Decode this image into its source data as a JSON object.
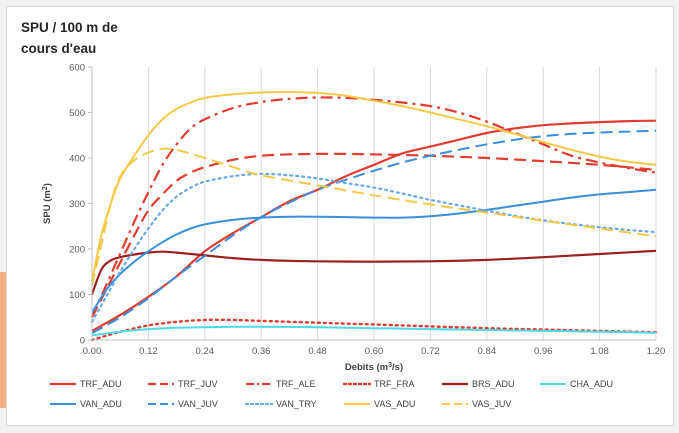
{
  "colors": {
    "accent": "#f4b183"
  },
  "chart_data": {
    "type": "line",
    "title_line1": "SPU / 100 m de",
    "title_line2": "cours d'eau",
    "xlabel_prefix": "Debits (m",
    "xlabel_sup": "3",
    "xlabel_suffix": "/s)",
    "ylabel_prefix": "SPU (m",
    "ylabel_sup": "2",
    "ylabel_suffix": ")",
    "xlim": [
      0,
      1.2
    ],
    "ylim": [
      0,
      600
    ],
    "x_ticks": [
      "0.00",
      "0.12",
      "0.24",
      "0.36",
      "0.48",
      "0.60",
      "0.72",
      "0.84",
      "0.96",
      "1.08",
      "1.20"
    ],
    "y_ticks": [
      "0",
      "100",
      "200",
      "300",
      "400",
      "500",
      "600"
    ],
    "grid": "vertical",
    "legend_position": "bottom",
    "series": [
      {
        "name": "TRF_ADU",
        "color": "#e03c31",
        "dash": "solid",
        "width": 2.2,
        "points": [
          [
            0,
            20
          ],
          [
            0.06,
            55
          ],
          [
            0.12,
            95
          ],
          [
            0.18,
            140
          ],
          [
            0.24,
            195
          ],
          [
            0.3,
            235
          ],
          [
            0.36,
            270
          ],
          [
            0.42,
            305
          ],
          [
            0.48,
            330
          ],
          [
            0.54,
            360
          ],
          [
            0.6,
            385
          ],
          [
            0.66,
            410
          ],
          [
            0.72,
            425
          ],
          [
            0.78,
            440
          ],
          [
            0.84,
            455
          ],
          [
            0.9,
            465
          ],
          [
            0.96,
            472
          ],
          [
            1.02,
            476
          ],
          [
            1.08,
            479
          ],
          [
            1.14,
            481
          ],
          [
            1.2,
            482
          ]
        ]
      },
      {
        "name": "TRF_JUV",
        "color": "#e03c31",
        "dash": "long",
        "width": 2.2,
        "points": [
          [
            0,
            50
          ],
          [
            0.03,
            110
          ],
          [
            0.06,
            170
          ],
          [
            0.09,
            230
          ],
          [
            0.12,
            285
          ],
          [
            0.15,
            320
          ],
          [
            0.18,
            350
          ],
          [
            0.21,
            368
          ],
          [
            0.24,
            380
          ],
          [
            0.3,
            396
          ],
          [
            0.36,
            405
          ],
          [
            0.42,
            408
          ],
          [
            0.48,
            409
          ],
          [
            0.54,
            409
          ],
          [
            0.6,
            408
          ],
          [
            0.72,
            405
          ],
          [
            0.84,
            400
          ],
          [
            0.96,
            393
          ],
          [
            1.08,
            385
          ],
          [
            1.2,
            374
          ]
        ]
      },
      {
        "name": "TRF_ALE",
        "color": "#e03c31",
        "dash": "dashdot",
        "width": 2.2,
        "points": [
          [
            0,
            50
          ],
          [
            0.03,
            120
          ],
          [
            0.06,
            190
          ],
          [
            0.09,
            260
          ],
          [
            0.12,
            325
          ],
          [
            0.15,
            385
          ],
          [
            0.18,
            430
          ],
          [
            0.21,
            465
          ],
          [
            0.24,
            485
          ],
          [
            0.3,
            510
          ],
          [
            0.36,
            523
          ],
          [
            0.42,
            530
          ],
          [
            0.48,
            533
          ],
          [
            0.54,
            532
          ],
          [
            0.6,
            528
          ],
          [
            0.66,
            522
          ],
          [
            0.72,
            514
          ],
          [
            0.78,
            500
          ],
          [
            0.84,
            480
          ],
          [
            0.9,
            455
          ],
          [
            0.96,
            430
          ],
          [
            1.02,
            405
          ],
          [
            1.08,
            390
          ],
          [
            1.14,
            378
          ],
          [
            1.2,
            368
          ]
        ]
      },
      {
        "name": "TRF_FRA",
        "color": "#e03c31",
        "dash": "dot",
        "width": 2.4,
        "points": [
          [
            0,
            0
          ],
          [
            0.06,
            18
          ],
          [
            0.12,
            32
          ],
          [
            0.18,
            40
          ],
          [
            0.24,
            44
          ],
          [
            0.3,
            44
          ],
          [
            0.36,
            42
          ],
          [
            0.48,
            38
          ],
          [
            0.6,
            34
          ],
          [
            0.72,
            30
          ],
          [
            0.84,
            26
          ],
          [
            0.96,
            23
          ],
          [
            1.08,
            20
          ],
          [
            1.2,
            17
          ]
        ]
      },
      {
        "name": "BRS_ADU",
        "color": "#9b2020",
        "dash": "solid",
        "width": 2.2,
        "points": [
          [
            0,
            100
          ],
          [
            0.02,
            155
          ],
          [
            0.04,
            175
          ],
          [
            0.06,
            182
          ],
          [
            0.09,
            188
          ],
          [
            0.12,
            192
          ],
          [
            0.15,
            194
          ],
          [
            0.18,
            192
          ],
          [
            0.24,
            186
          ],
          [
            0.3,
            180
          ],
          [
            0.36,
            176
          ],
          [
            0.42,
            174
          ],
          [
            0.48,
            173
          ],
          [
            0.6,
            172
          ],
          [
            0.72,
            173
          ],
          [
            0.84,
            176
          ],
          [
            0.96,
            182
          ],
          [
            1.08,
            189
          ],
          [
            1.2,
            196
          ]
        ]
      },
      {
        "name": "CHA_ADU",
        "color": "#4dd9e8",
        "dash": "solid",
        "width": 2.0,
        "points": [
          [
            0,
            10
          ],
          [
            0.06,
            18
          ],
          [
            0.12,
            24
          ],
          [
            0.18,
            27
          ],
          [
            0.24,
            28
          ],
          [
            0.3,
            29
          ],
          [
            0.36,
            29
          ],
          [
            0.48,
            28
          ],
          [
            0.6,
            26
          ],
          [
            0.72,
            24
          ],
          [
            0.84,
            22
          ],
          [
            0.96,
            20
          ],
          [
            1.08,
            18
          ],
          [
            1.2,
            16
          ]
        ]
      },
      {
        "name": "VAN_ADU",
        "color": "#3a8fdc",
        "dash": "solid",
        "width": 2.0,
        "points": [
          [
            0,
            60
          ],
          [
            0.03,
            110
          ],
          [
            0.06,
            145
          ],
          [
            0.09,
            172
          ],
          [
            0.12,
            195
          ],
          [
            0.15,
            215
          ],
          [
            0.18,
            232
          ],
          [
            0.21,
            245
          ],
          [
            0.24,
            254
          ],
          [
            0.3,
            264
          ],
          [
            0.36,
            269
          ],
          [
            0.42,
            271
          ],
          [
            0.48,
            271
          ],
          [
            0.54,
            270
          ],
          [
            0.6,
            269
          ],
          [
            0.66,
            269
          ],
          [
            0.72,
            272
          ],
          [
            0.78,
            278
          ],
          [
            0.84,
            286
          ],
          [
            0.9,
            295
          ],
          [
            0.96,
            304
          ],
          [
            1.02,
            313
          ],
          [
            1.08,
            320
          ],
          [
            1.14,
            325
          ],
          [
            1.2,
            330
          ]
        ]
      },
      {
        "name": "VAN_JUV",
        "color": "#3a8fdc",
        "dash": "long",
        "width": 2.0,
        "points": [
          [
            0,
            15
          ],
          [
            0.06,
            50
          ],
          [
            0.12,
            92
          ],
          [
            0.18,
            140
          ],
          [
            0.24,
            185
          ],
          [
            0.3,
            230
          ],
          [
            0.36,
            270
          ],
          [
            0.42,
            302
          ],
          [
            0.48,
            330
          ],
          [
            0.54,
            352
          ],
          [
            0.6,
            372
          ],
          [
            0.66,
            390
          ],
          [
            0.72,
            405
          ],
          [
            0.78,
            418
          ],
          [
            0.84,
            430
          ],
          [
            0.9,
            440
          ],
          [
            0.96,
            448
          ],
          [
            1.02,
            453
          ],
          [
            1.08,
            456
          ],
          [
            1.14,
            458
          ],
          [
            1.2,
            460
          ]
        ]
      },
      {
        "name": "VAN_TRY",
        "color": "#6aa9e6",
        "dash": "dot",
        "width": 2.2,
        "points": [
          [
            0,
            40
          ],
          [
            0.03,
            95
          ],
          [
            0.06,
            150
          ],
          [
            0.09,
            200
          ],
          [
            0.12,
            245
          ],
          [
            0.15,
            285
          ],
          [
            0.18,
            315
          ],
          [
            0.21,
            335
          ],
          [
            0.24,
            348
          ],
          [
            0.3,
            360
          ],
          [
            0.36,
            365
          ],
          [
            0.42,
            362
          ],
          [
            0.48,
            355
          ],
          [
            0.54,
            345
          ],
          [
            0.6,
            335
          ],
          [
            0.66,
            322
          ],
          [
            0.72,
            308
          ],
          [
            0.78,
            296
          ],
          [
            0.84,
            284
          ],
          [
            0.9,
            273
          ],
          [
            0.96,
            263
          ],
          [
            1.02,
            255
          ],
          [
            1.08,
            248
          ],
          [
            1.14,
            242
          ],
          [
            1.2,
            237
          ]
        ]
      },
      {
        "name": "VAS_ADU",
        "color": "#f7c948",
        "dash": "solid",
        "width": 2.0,
        "points": [
          [
            0,
            130
          ],
          [
            0.02,
            230
          ],
          [
            0.04,
            300
          ],
          [
            0.06,
            355
          ],
          [
            0.09,
            405
          ],
          [
            0.12,
            450
          ],
          [
            0.15,
            485
          ],
          [
            0.18,
            508
          ],
          [
            0.21,
            522
          ],
          [
            0.24,
            532
          ],
          [
            0.3,
            540
          ],
          [
            0.36,
            544
          ],
          [
            0.42,
            545
          ],
          [
            0.48,
            543
          ],
          [
            0.54,
            537
          ],
          [
            0.6,
            526
          ],
          [
            0.66,
            514
          ],
          [
            0.72,
            500
          ],
          [
            0.78,
            485
          ],
          [
            0.84,
            470
          ],
          [
            0.9,
            453
          ],
          [
            0.96,
            435
          ],
          [
            1.02,
            418
          ],
          [
            1.08,
            403
          ],
          [
            1.14,
            392
          ],
          [
            1.2,
            385
          ]
        ]
      },
      {
        "name": "VAS_JUV",
        "color": "#f7c948",
        "dash": "long",
        "width": 2.0,
        "points": [
          [
            0,
            120
          ],
          [
            0.02,
            210
          ],
          [
            0.04,
            300
          ],
          [
            0.06,
            360
          ],
          [
            0.09,
            395
          ],
          [
            0.12,
            412
          ],
          [
            0.15,
            420
          ],
          [
            0.18,
            418
          ],
          [
            0.24,
            400
          ],
          [
            0.3,
            380
          ],
          [
            0.36,
            362
          ],
          [
            0.48,
            340
          ],
          [
            0.6,
            318
          ],
          [
            0.72,
            298
          ],
          [
            0.84,
            280
          ],
          [
            0.96,
            262
          ],
          [
            1.08,
            245
          ],
          [
            1.2,
            228
          ]
        ]
      }
    ]
  }
}
